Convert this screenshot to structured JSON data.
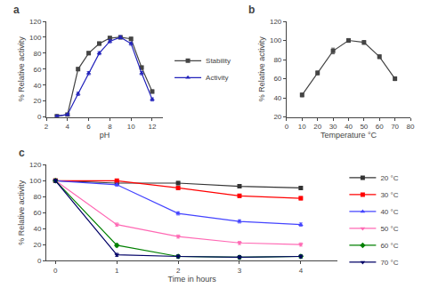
{
  "chart_data": [
    {
      "type": "line",
      "title": "a",
      "xlabel": "pH",
      "ylabel": "% Relative activity",
      "x": [
        3,
        4,
        5,
        6,
        7,
        8,
        9,
        10,
        11,
        12
      ],
      "series": [
        {
          "name": "Stability",
          "color": "#444444",
          "marker": "square",
          "values": [
            1,
            3,
            60,
            80,
            92,
            99,
            100,
            98,
            62,
            32
          ],
          "errors": [
            1,
            1,
            2,
            2,
            2,
            2,
            1,
            2,
            2,
            2
          ]
        },
        {
          "name": "Activity",
          "color": "#2222bb",
          "marker": "triangle-up",
          "values": [
            1,
            3,
            29,
            55,
            80,
            95,
            100,
            92,
            55,
            22
          ],
          "errors": [
            1,
            1,
            2,
            2,
            2,
            2,
            2,
            2,
            2,
            2
          ]
        }
      ],
      "xlim": [
        2,
        13
      ],
      "xticks": [
        2,
        4,
        6,
        8,
        10,
        12
      ],
      "ylim": [
        0,
        120
      ],
      "yticks": [
        0,
        20,
        40,
        60,
        80,
        100,
        120
      ],
      "grid": false,
      "legend": "right"
    },
    {
      "type": "line",
      "title": "b",
      "xlabel": "Temperature °C",
      "ylabel": "% Relative activity",
      "x": [
        10,
        20,
        30,
        40,
        50,
        60,
        70
      ],
      "series": [
        {
          "color": "#444444",
          "marker": "square",
          "values": [
            43,
            66,
            89,
            100,
            98,
            83,
            60
          ],
          "errors": [
            2,
            2,
            3,
            2,
            2,
            2,
            2
          ]
        }
      ],
      "xlim": [
        0,
        80
      ],
      "xticks": [
        0,
        10,
        20,
        30,
        40,
        50,
        60,
        70,
        80
      ],
      "ylim": [
        20,
        120
      ],
      "yticks": [
        20,
        40,
        60,
        80,
        100,
        120
      ],
      "grid": false
    },
    {
      "type": "line",
      "title": "c",
      "xlabel": "Time in hours",
      "ylabel": "% Relative activity",
      "x": [
        0,
        1,
        2,
        3,
        4
      ],
      "series": [
        {
          "name": "20 °C",
          "color": "#333333",
          "marker": "square",
          "values": [
            100,
            97,
            97,
            93,
            91
          ],
          "errors": [
            2,
            2,
            2,
            2,
            2
          ]
        },
        {
          "name": "30 °C",
          "color": "#ff0000",
          "marker": "square",
          "values": [
            100,
            100,
            91,
            81,
            78
          ],
          "errors": [
            2,
            2,
            2,
            2,
            2
          ]
        },
        {
          "name": "40 °C",
          "color": "#4444ff",
          "marker": "triangle-up",
          "values": [
            100,
            95,
            59,
            49,
            45
          ],
          "errors": [
            2,
            2,
            2,
            2,
            2
          ]
        },
        {
          "name": "50 °C",
          "color": "#ff69b4",
          "marker": "triangle-down",
          "values": [
            100,
            45,
            30,
            22,
            20
          ],
          "errors": [
            2,
            2,
            2,
            2,
            2
          ]
        },
        {
          "name": "60 °C",
          "color": "#008000",
          "marker": "diamond",
          "values": [
            100,
            19,
            5,
            4,
            5
          ],
          "errors": [
            2,
            2,
            2,
            2,
            2
          ]
        },
        {
          "name": "70 °C",
          "color": "#000066",
          "marker": "triangle-down",
          "values": [
            100,
            7,
            5,
            4,
            5
          ],
          "errors": [
            2,
            2,
            2,
            2,
            2
          ]
        }
      ],
      "xlim": [
        -0.15,
        4.6
      ],
      "xticks": [
        0,
        1,
        2,
        3,
        4
      ],
      "ylim": [
        0,
        120
      ],
      "yticks": [
        0,
        20,
        40,
        60,
        80,
        100,
        120
      ],
      "grid": false,
      "legend": "upper right"
    }
  ]
}
